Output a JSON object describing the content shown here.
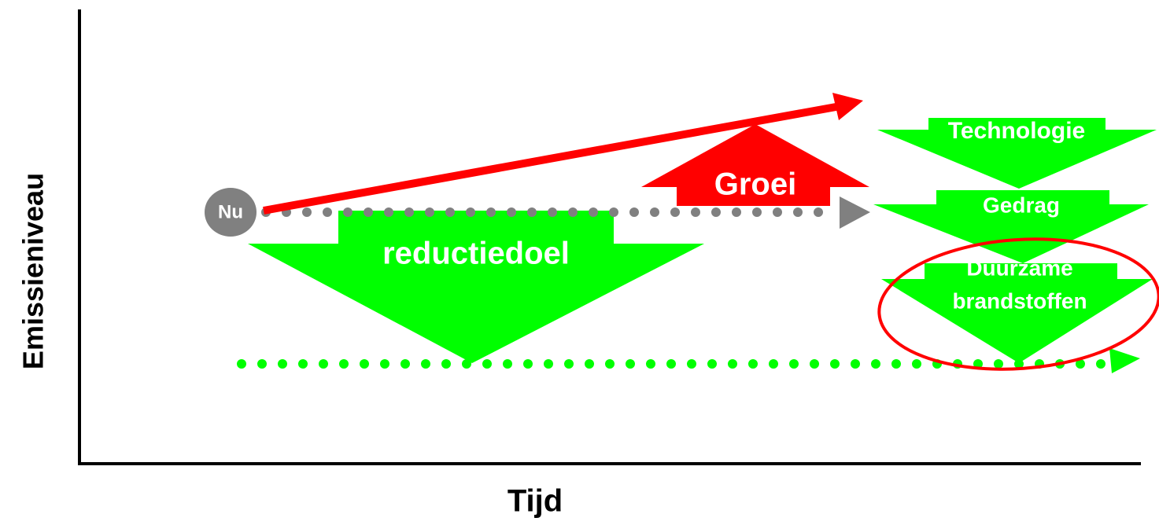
{
  "axes": {
    "y_label": "Emissieniveau",
    "x_label": "Tijd"
  },
  "nodes": [
    {
      "label": "Nu"
    },
    {
      "label": "reductiedoel"
    },
    {
      "label": "Groei"
    },
    {
      "label": "Technologie"
    },
    {
      "label": "Gedrag"
    },
    {
      "lines": [
        "Duurzame",
        "brandstoffen"
      ]
    }
  ]
}
